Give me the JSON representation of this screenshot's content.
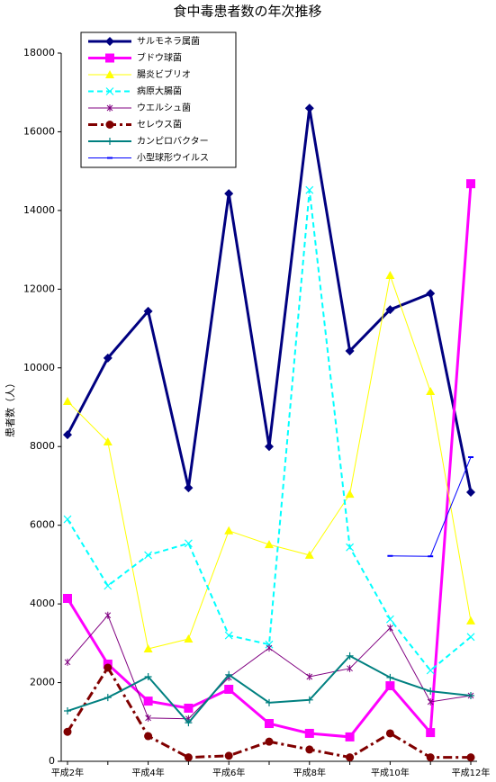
{
  "chart_data": {
    "type": "line",
    "title": "食中毒患者数の年次推移",
    "y_label": "患者数（人）",
    "categories": [
      "平成2年",
      null,
      "平成4年",
      null,
      "平成6年",
      null,
      "平成8年",
      null,
      "平成10年",
      null,
      "平成12年"
    ],
    "ylim": [
      0,
      18000
    ],
    "yticks": [
      0,
      2000,
      4000,
      6000,
      8000,
      10000,
      12000,
      14000,
      16000,
      18000
    ],
    "legend": "top-left",
    "series": [
      {
        "name": "サルモネラ属菌",
        "color": "#000080",
        "marker": "diamond",
        "dash": "solid",
        "width": 3,
        "values": [
          8300,
          10250,
          11440,
          6950,
          14430,
          8000,
          16600,
          10430,
          11480,
          11890,
          6840
        ]
      },
      {
        "name": "ブドウ球菌",
        "color": "#ff00ff",
        "marker": "square",
        "dash": "solid",
        "width": 3,
        "values": [
          4140,
          2470,
          1530,
          1350,
          1830,
          960,
          710,
          620,
          1920,
          730,
          14680
        ]
      },
      {
        "name": "腸炎ビブリオ",
        "color": "#ffff00",
        "marker": "triangle",
        "dash": "solid",
        "width": 1,
        "values": [
          9150,
          8120,
          2860,
          3110,
          5860,
          5510,
          5240,
          6790,
          12350,
          9400,
          3570
        ]
      },
      {
        "name": "病原大腸菌",
        "color": "#00ffff",
        "marker": "cross",
        "dash": "dashed",
        "width": 2,
        "values": [
          6150,
          4460,
          5240,
          5540,
          3200,
          2970,
          14520,
          5440,
          3610,
          2310,
          3160
        ]
      },
      {
        "name": "ウエルシュ菌",
        "color": "#800080",
        "marker": "star",
        "dash": "solid",
        "width": 1,
        "values": [
          2520,
          3710,
          1100,
          1080,
          2130,
          2880,
          2150,
          2360,
          3390,
          1510,
          1670
        ]
      },
      {
        "name": "セレウス菌",
        "color": "#800000",
        "marker": "circle",
        "dash": "dashdot",
        "width": 3,
        "values": [
          750,
          2380,
          640,
          100,
          140,
          500,
          300,
          100,
          710,
          100,
          100
        ]
      },
      {
        "name": "カンピロバクター",
        "color": "#008080",
        "marker": "plus",
        "dash": "solid",
        "width": 2,
        "values": [
          1280,
          1620,
          2150,
          980,
          2200,
          1490,
          1560,
          2680,
          2130,
          1780,
          1670
        ]
      },
      {
        "name": "小型球形ウイルス",
        "color": "#0000ff",
        "marker": "dash",
        "dash": "solid",
        "width": 1,
        "values": [
          null,
          null,
          null,
          null,
          null,
          null,
          null,
          null,
          5220,
          5210,
          7730
        ]
      }
    ]
  }
}
